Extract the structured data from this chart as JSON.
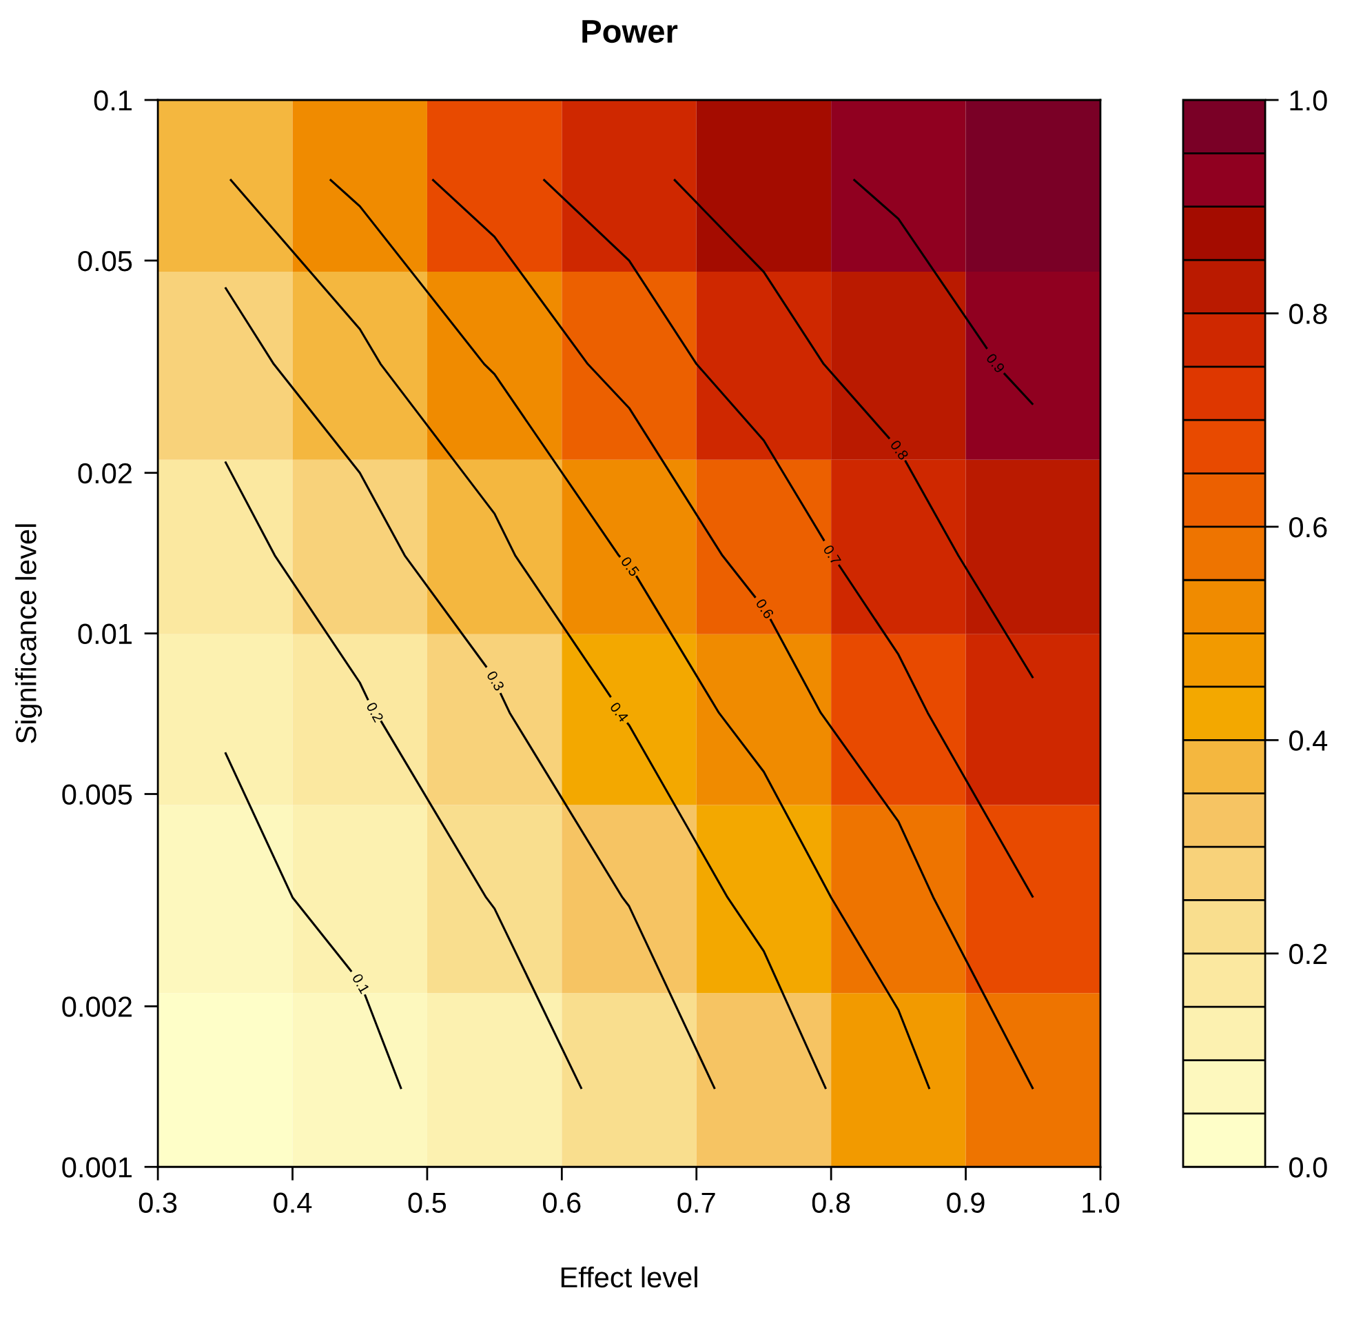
{
  "chart_data": {
    "type": "heatmap",
    "title": "Power",
    "xlabel": "Effect level",
    "ylabel": "Significance level",
    "x": [
      0.35,
      0.45,
      0.55,
      0.65,
      0.75,
      0.85,
      0.95
    ],
    "y": [
      0.0014,
      0.0032,
      0.0071,
      0.014,
      0.032,
      0.071
    ],
    "cells": [
      [
        0.04,
        0.08,
        0.145,
        0.23,
        0.34,
        0.47,
        0.6
      ],
      [
        0.075,
        0.125,
        0.205,
        0.305,
        0.435,
        0.565,
        0.7
      ],
      [
        0.11,
        0.19,
        0.286,
        0.41,
        0.545,
        0.675,
        0.79
      ],
      [
        0.165,
        0.26,
        0.38,
        0.51,
        0.64,
        0.76,
        0.85
      ],
      [
        0.255,
        0.38,
        0.51,
        0.64,
        0.76,
        0.85,
        0.92
      ],
      [
        0.395,
        0.53,
        0.66,
        0.77,
        0.86,
        0.92,
        0.96
      ]
    ],
    "colors": [
      "#fefec8",
      "#fdf8be",
      "#fcf1b0",
      "#fbe8a0",
      "#f9de8e",
      "#f8d27a",
      "#f6c463",
      "#f4b73f",
      "#f3a800",
      "#f29a00",
      "#f08b00",
      "#ee7400",
      "#ec6000",
      "#e84a00",
      "#de3700",
      "#cf2800",
      "#ba1a00",
      "#a40c00",
      "#900020",
      "#7a0026"
    ],
    "clim": [
      0,
      1
    ],
    "cticks": [
      {
        "value": 0,
        "label": "0.0"
      },
      0.2,
      0.4,
      0.6,
      0.8,
      {
        "value": 1,
        "label": "1.0"
      }
    ],
    "xlim": [
      0.3,
      1.0
    ],
    "xticks": [
      0.3,
      0.4,
      0.5,
      0.6,
      0.7,
      0.8,
      0.9,
      {
        "value": 1.0,
        "label": "1.0"
      }
    ],
    "ylim": [
      0.001,
      0.1
    ],
    "yticks": [
      0.001,
      0.002,
      0.005,
      0.01,
      0.02,
      0.05,
      0.1
    ],
    "log": "y",
    "annotations": [
      "0.1",
      "0.2",
      "0.3",
      "0.4",
      "0.5",
      "0.6",
      "0.7",
      "0.8",
      "0.9"
    ]
  }
}
